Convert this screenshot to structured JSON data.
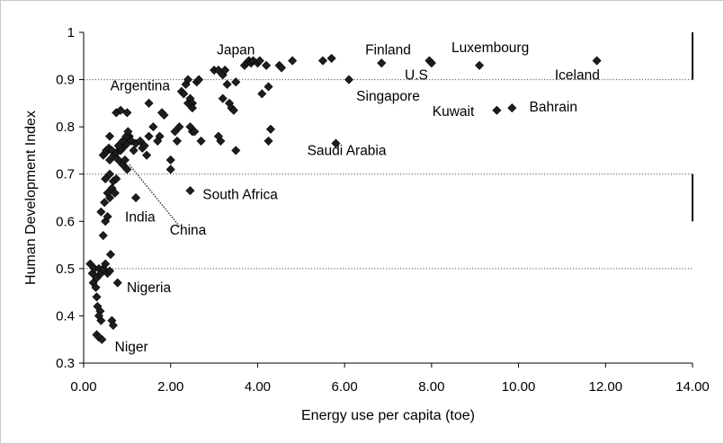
{
  "chart_data": {
    "type": "scatter",
    "title": "",
    "xlabel": "Energy use per capita (toe)",
    "ylabel": "Human Development Index",
    "xlim": [
      0,
      14
    ],
    "ylim": [
      0.3,
      1.0
    ],
    "x_ticks": [
      "0.00",
      "2.00",
      "4.00",
      "6.00",
      "8.00",
      "10.00",
      "12.00",
      "14.00"
    ],
    "y_ticks": [
      "0.3",
      "0.4",
      "0.5",
      "0.6",
      "0.7",
      "0.8",
      "0.9",
      "1"
    ],
    "x_tick_values": [
      0,
      2,
      4,
      6,
      8,
      10,
      12,
      14
    ],
    "y_tick_values": [
      0.3,
      0.4,
      0.5,
      0.6,
      0.7,
      0.8,
      0.9,
      1.0
    ],
    "grid": false,
    "reference_lines": [
      0.9,
      0.7,
      0.5
    ],
    "range_bars": [
      [
        0.9,
        1.0
      ],
      [
        0.6,
        0.7
      ]
    ],
    "marker": "diamond",
    "marker_color": "#1e1e1e",
    "points": [
      [
        0.15,
        0.51
      ],
      [
        0.2,
        0.49
      ],
      [
        0.25,
        0.5
      ],
      [
        0.3,
        0.48
      ],
      [
        0.22,
        0.47
      ],
      [
        0.28,
        0.46
      ],
      [
        0.35,
        0.5
      ],
      [
        0.4,
        0.49
      ],
      [
        0.45,
        0.5
      ],
      [
        0.5,
        0.51
      ],
      [
        0.3,
        0.44
      ],
      [
        0.32,
        0.42
      ],
      [
        0.38,
        0.41
      ],
      [
        0.4,
        0.39
      ],
      [
        0.35,
        0.4
      ],
      [
        0.3,
        0.36
      ],
      [
        0.35,
        0.355
      ],
      [
        0.42,
        0.35
      ],
      [
        0.65,
        0.39
      ],
      [
        0.68,
        0.38
      ],
      [
        0.62,
        0.53
      ],
      [
        0.78,
        0.47
      ],
      [
        0.55,
        0.49
      ],
      [
        0.6,
        0.495
      ],
      [
        0.4,
        0.62
      ],
      [
        0.45,
        0.57
      ],
      [
        0.5,
        0.6
      ],
      [
        0.55,
        0.61
      ],
      [
        0.48,
        0.64
      ],
      [
        0.6,
        0.65
      ],
      [
        0.55,
        0.66
      ],
      [
        0.5,
        0.69
      ],
      [
        0.6,
        0.7
      ],
      [
        0.65,
        0.67
      ],
      [
        0.72,
        0.66
      ],
      [
        0.68,
        0.685
      ],
      [
        0.75,
        0.69
      ],
      [
        0.45,
        0.74
      ],
      [
        0.5,
        0.745
      ],
      [
        0.52,
        0.75
      ],
      [
        0.58,
        0.755
      ],
      [
        0.6,
        0.73
      ],
      [
        0.65,
        0.75
      ],
      [
        0.7,
        0.74
      ],
      [
        0.75,
        0.745
      ],
      [
        0.8,
        0.73
      ],
      [
        0.85,
        0.75
      ],
      [
        0.9,
        0.72
      ],
      [
        0.95,
        0.76
      ],
      [
        1.0,
        0.765
      ],
      [
        1.05,
        0.78
      ],
      [
        1.1,
        0.77
      ],
      [
        1.15,
        0.75
      ],
      [
        0.85,
        0.755
      ],
      [
        0.6,
        0.78
      ],
      [
        0.8,
        0.76
      ],
      [
        0.9,
        0.77
      ],
      [
        0.98,
        0.78
      ],
      [
        1.02,
        0.79
      ],
      [
        1.2,
        0.765
      ],
      [
        1.3,
        0.77
      ],
      [
        1.35,
        0.755
      ],
      [
        1.4,
        0.76
      ],
      [
        1.0,
        0.71
      ],
      [
        1.2,
        0.65
      ],
      [
        0.95,
        0.73
      ],
      [
        0.75,
        0.83
      ],
      [
        0.85,
        0.835
      ],
      [
        1.0,
        0.83
      ],
      [
        1.5,
        0.85
      ],
      [
        1.5,
        0.78
      ],
      [
        1.6,
        0.8
      ],
      [
        1.8,
        0.83
      ],
      [
        1.85,
        0.825
      ],
      [
        1.75,
        0.78
      ],
      [
        1.7,
        0.77
      ],
      [
        1.45,
        0.74
      ],
      [
        2.0,
        0.73
      ],
      [
        2.0,
        0.71
      ],
      [
        2.1,
        0.79
      ],
      [
        2.15,
        0.77
      ],
      [
        2.2,
        0.8
      ],
      [
        2.25,
        0.875
      ],
      [
        2.3,
        0.87
      ],
      [
        2.35,
        0.89
      ],
      [
        2.4,
        0.85
      ],
      [
        2.45,
        0.86
      ],
      [
        2.5,
        0.85
      ],
      [
        2.45,
        0.8
      ],
      [
        2.5,
        0.79
      ],
      [
        2.55,
        0.79
      ],
      [
        2.4,
        0.9
      ],
      [
        2.6,
        0.895
      ],
      [
        2.65,
        0.9
      ],
      [
        2.5,
        0.84
      ],
      [
        2.7,
        0.77
      ],
      [
        2.45,
        0.665
      ],
      [
        3.0,
        0.92
      ],
      [
        3.1,
        0.92
      ],
      [
        3.2,
        0.91
      ],
      [
        3.25,
        0.92
      ],
      [
        3.3,
        0.89
      ],
      [
        3.2,
        0.86
      ],
      [
        3.35,
        0.85
      ],
      [
        3.4,
        0.84
      ],
      [
        3.45,
        0.835
      ],
      [
        3.5,
        0.895
      ],
      [
        3.5,
        0.75
      ],
      [
        3.15,
        0.77
      ],
      [
        3.1,
        0.78
      ],
      [
        3.7,
        0.93
      ],
      [
        3.75,
        0.935
      ],
      [
        3.8,
        0.94
      ],
      [
        3.85,
        0.935
      ],
      [
        3.9,
        0.94
      ],
      [
        4.0,
        0.935
      ],
      [
        4.05,
        0.94
      ],
      [
        4.2,
        0.93
      ],
      [
        4.1,
        0.87
      ],
      [
        4.25,
        0.885
      ],
      [
        4.5,
        0.93
      ],
      [
        4.55,
        0.925
      ],
      [
        4.8,
        0.94
      ],
      [
        4.3,
        0.795
      ],
      [
        4.25,
        0.77
      ],
      [
        5.5,
        0.94
      ],
      [
        5.7,
        0.945
      ],
      [
        6.1,
        0.9
      ],
      [
        5.8,
        0.765
      ],
      [
        6.85,
        0.935
      ],
      [
        7.95,
        0.94
      ],
      [
        8.0,
        0.935
      ],
      [
        9.1,
        0.93
      ],
      [
        9.5,
        0.835
      ],
      [
        9.85,
        0.84
      ],
      [
        11.8,
        0.94
      ]
    ],
    "annotations": [
      {
        "text": "Japan",
        "x": 3.5,
        "y": 0.953
      },
      {
        "text": "Finland",
        "x": 7.0,
        "y": 0.953
      },
      {
        "text": "Luxembourg",
        "x": 9.35,
        "y": 0.958
      },
      {
        "text": "U.S",
        "x": 7.65,
        "y": 0.9
      },
      {
        "text": "Iceland",
        "x": 11.35,
        "y": 0.9
      },
      {
        "text": "Argentina",
        "x": 1.3,
        "y": 0.877
      },
      {
        "text": "Singapore",
        "x": 7.0,
        "y": 0.855
      },
      {
        "text": "Kuwait",
        "x": 8.5,
        "y": 0.823
      },
      {
        "text": "Bahrain",
        "x": 10.8,
        "y": 0.833
      },
      {
        "text": "Saudi Arabia",
        "x": 6.05,
        "y": 0.74
      },
      {
        "text": "South Africa",
        "x": 3.6,
        "y": 0.647
      },
      {
        "text": "India",
        "x": 1.3,
        "y": 0.6
      },
      {
        "text": "China",
        "x": 2.4,
        "y": 0.572
      },
      {
        "text": "Nigeria",
        "x": 1.5,
        "y": 0.45
      },
      {
        "text": "Niger",
        "x": 1.1,
        "y": 0.325
      }
    ],
    "leader_line": {
      "from": [
        1.05,
        0.72
      ],
      "to": [
        2.2,
        0.59
      ]
    }
  }
}
